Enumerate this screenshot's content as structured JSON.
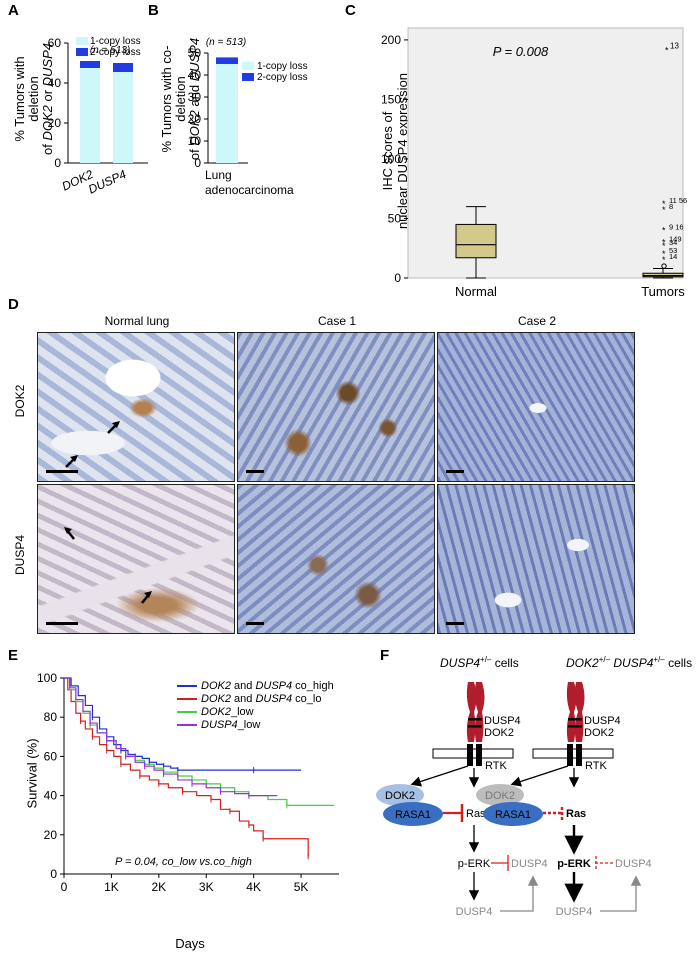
{
  "panels": {
    "A": {
      "letter": "A",
      "ylabel_line1": "% Tumors with deletion",
      "ylabel_line2_pre": "of ",
      "ylabel_line2_g1": "DOK2",
      "ylabel_line2_mid": " or ",
      "ylabel_line2_g2": "DUSP4",
      "n_label": "(n = 513)",
      "legend": [
        "1-copy loss",
        "2-copy loss"
      ],
      "colors": {
        "one_copy": "#cdf7f9",
        "two_copy": "#1f3de0"
      }
    },
    "B": {
      "letter": "B",
      "ylabel_line1": "% Tumors with co-deletion",
      "ylabel_line2_pre": "of ",
      "ylabel_line2_g1": "DOK2",
      "ylabel_line2_mid": " and ",
      "ylabel_line2_g2": "DUSP4",
      "n_label": "(n = 513)",
      "legend": [
        "1-copy loss",
        "2-copy loss"
      ],
      "xlabel_line1": "Lung",
      "xlabel_line2": "adenocarcinoma"
    },
    "C": {
      "letter": "C",
      "ylabel_line1": "IHC scores of",
      "ylabel_line2": "nuclear DUSP4 expression",
      "pvalue": "P = 0.008",
      "outliers": [
        "13",
        "11",
        "56",
        "8",
        "9",
        "16",
        "149",
        "34",
        "53",
        "14"
      ]
    },
    "D": {
      "letter": "D",
      "col_headers": [
        "Normal lung",
        "Case 1",
        "Case 2"
      ],
      "row_labels": [
        "DOK2",
        "DUSP4"
      ]
    },
    "E": {
      "letter": "E",
      "ylabel": "Survival (%)",
      "xlabel": "Days",
      "pvalue": "P = 0.04, co_low vs.co_high",
      "legend": [
        {
          "g1": "DOK2",
          "mid": " and ",
          "g2": "DUSP4",
          "suffix": " co_high",
          "color": "#1f2fd6"
        },
        {
          "g1": "DOK2",
          "mid": " and ",
          "g2": "DUSP4",
          "suffix": " co_lo",
          "color": "#d41f1f"
        },
        {
          "g1": "DOK2",
          "mid": "",
          "g2": "",
          "suffix": "_low",
          "color": "#3ed23e"
        },
        {
          "g1": "DUSP4",
          "mid": "",
          "g2": "",
          "suffix": "_low",
          "color": "#9b2fe0"
        }
      ]
    },
    "F": {
      "letter": "F",
      "left_title_gene": "DUSP4",
      "left_title_sup": "+/–",
      "left_title_rest": " cells",
      "right_title_gene1": "DOK2",
      "right_title_sup1": "+/–",
      "right_title_gene2": "DUSP4",
      "right_title_sup2": "+/–",
      "right_title_rest": " cells",
      "chrom_labels": [
        "DUSP4",
        "DOK2"
      ],
      "nodes": {
        "rtk": "RTK",
        "dok2": "DOK2",
        "rasa1": "RASA1",
        "ras": "Ras",
        "perk": "p-ERK",
        "dusp4": "DUSP4"
      }
    }
  },
  "chart_data": [
    {
      "panel": "A",
      "type": "bar",
      "stacked": true,
      "categories": [
        "DOK2",
        "DUSP4"
      ],
      "series": [
        {
          "name": "1-copy loss",
          "values": [
            47.5,
            45.5
          ]
        },
        {
          "name": "2-copy loss",
          "values": [
            3.5,
            4.5
          ]
        }
      ],
      "ylim": [
        0,
        60
      ],
      "yticks": [
        "0",
        "20",
        "40",
        "60"
      ]
    },
    {
      "panel": "B",
      "type": "bar",
      "stacked": true,
      "categories": [
        "Lung adenocarcinoma"
      ],
      "series": [
        {
          "name": "1-copy loss",
          "values": [
            45
          ]
        },
        {
          "name": "2-copy loss",
          "values": [
            3
          ]
        }
      ],
      "ylim": [
        0,
        50
      ],
      "yticks": [
        "0",
        "10",
        "20",
        "30",
        "40",
        "50"
      ]
    },
    {
      "panel": "C",
      "type": "box",
      "categories": [
        "Normal",
        "Tumors"
      ],
      "boxes": [
        {
          "min": 0,
          "q1": 17,
          "median": 28,
          "q3": 45,
          "max": 60
        },
        {
          "min": 0,
          "q1": 1,
          "median": 2,
          "q3": 4,
          "max": 8
        }
      ],
      "outlier_points": [
        {
          "label": "13",
          "y": 191
        },
        {
          "label": "11",
          "y": 62
        },
        {
          "label": "56",
          "y": 62
        },
        {
          "label": "8",
          "y": 57
        },
        {
          "label": "9",
          "y": 40
        },
        {
          "label": "16",
          "y": 40
        },
        {
          "label": "149",
          "y": 30
        },
        {
          "label": "34",
          "y": 27
        },
        {
          "label": "53",
          "y": 20
        },
        {
          "label": "14",
          "y": 15
        }
      ],
      "ylim": [
        0,
        210
      ],
      "yticks": [
        "0",
        "50",
        "100",
        "150",
        "200"
      ]
    },
    {
      "panel": "E",
      "type": "line",
      "xlim": [
        0,
        5800
      ],
      "ylim": [
        0,
        100
      ],
      "xticks": [
        "0",
        "1K",
        "2K",
        "3K",
        "4K",
        "5K"
      ],
      "yticks": [
        "0",
        "20",
        "40",
        "60",
        "80",
        "100"
      ],
      "series": [
        {
          "name": "co_high",
          "points": [
            [
              0,
              100
            ],
            [
              150,
              96
            ],
            [
              300,
              91
            ],
            [
              450,
              86
            ],
            [
              600,
              80
            ],
            [
              750,
              74
            ],
            [
              900,
              70
            ],
            [
              1050,
              66
            ],
            [
              1200,
              63
            ],
            [
              1350,
              61
            ],
            [
              1500,
              60
            ],
            [
              1650,
              59
            ],
            [
              1800,
              57
            ],
            [
              1950,
              56
            ],
            [
              2100,
              55
            ],
            [
              2250,
              54
            ],
            [
              2400,
              53
            ],
            [
              3000,
              53
            ],
            [
              4000,
              53
            ],
            [
              5000,
              53
            ]
          ]
        },
        {
          "name": "co_lo",
          "points": [
            [
              0,
              100
            ],
            [
              80,
              94
            ],
            [
              150,
              88
            ],
            [
              250,
              82
            ],
            [
              350,
              78
            ],
            [
              450,
              74
            ],
            [
              600,
              70
            ],
            [
              750,
              66
            ],
            [
              900,
              63
            ],
            [
              1050,
              60
            ],
            [
              1200,
              56
            ],
            [
              1400,
              53
            ],
            [
              1600,
              50
            ],
            [
              1800,
              48
            ],
            [
              2000,
              46
            ],
            [
              2200,
              44
            ],
            [
              2500,
              42
            ],
            [
              2800,
              40
            ],
            [
              3100,
              38
            ],
            [
              3300,
              33
            ],
            [
              3500,
              32
            ],
            [
              3700,
              27
            ],
            [
              3900,
              25
            ],
            [
              4000,
              22
            ],
            [
              4200,
              18
            ],
            [
              5000,
              18
            ],
            [
              5150,
              9
            ]
          ]
        },
        {
          "name": "DOK2_low",
          "points": [
            [
              0,
              100
            ],
            [
              120,
              94
            ],
            [
              250,
              88
            ],
            [
              400,
              82
            ],
            [
              550,
              76
            ],
            [
              700,
              72
            ],
            [
              900,
              68
            ],
            [
              1100,
              64
            ],
            [
              1300,
              60
            ],
            [
              1500,
              58
            ],
            [
              1700,
              56
            ],
            [
              1900,
              54
            ],
            [
              2100,
              52
            ],
            [
              2400,
              50
            ],
            [
              2700,
              48
            ],
            [
              3000,
              46
            ],
            [
              3300,
              44
            ],
            [
              3600,
              42
            ],
            [
              3900,
              40
            ],
            [
              4300,
              38
            ],
            [
              4700,
              35
            ],
            [
              5700,
              35
            ]
          ]
        },
        {
          "name": "DUSP4_low",
          "points": [
            [
              0,
              100
            ],
            [
              120,
              95
            ],
            [
              250,
              89
            ],
            [
              400,
              83
            ],
            [
              550,
              77
            ],
            [
              700,
              72
            ],
            [
              900,
              68
            ],
            [
              1100,
              64
            ],
            [
              1300,
              60
            ],
            [
              1500,
              57
            ],
            [
              1700,
              55
            ],
            [
              1900,
              53
            ],
            [
              2100,
              51
            ],
            [
              2400,
              48
            ],
            [
              2700,
              46
            ],
            [
              3000,
              44
            ],
            [
              3300,
              42
            ],
            [
              3600,
              41
            ],
            [
              3900,
              40
            ],
            [
              4500,
              40
            ]
          ]
        }
      ]
    }
  ]
}
